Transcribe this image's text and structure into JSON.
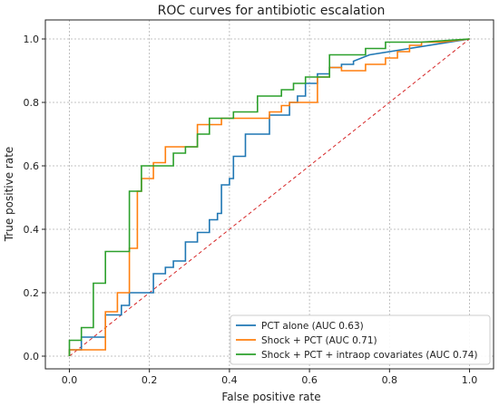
{
  "chart_data": {
    "type": "line",
    "title": "ROC curves for antibiotic escalation",
    "xlabel": "False positive rate",
    "ylabel": "True positive rate",
    "xlim": [
      -0.06,
      1.06
    ],
    "ylim": [
      -0.04,
      1.06
    ],
    "xticks": [
      "0.0",
      "0.2",
      "0.4",
      "0.6",
      "0.8",
      "1.0"
    ],
    "yticks": [
      "0.0",
      "0.2",
      "0.4",
      "0.6",
      "0.8",
      "1.0"
    ],
    "grid": true,
    "legend_position": "lower-right",
    "series": [
      {
        "name": "PCT alone (AUC 0.63)",
        "color": "#1f77b4",
        "x": [
          0,
          0,
          0.03,
          0.03,
          0.09,
          0.09,
          0.13,
          0.13,
          0.15,
          0.15,
          0.21,
          0.21,
          0.24,
          0.24,
          0.26,
          0.26,
          0.29,
          0.29,
          0.32,
          0.32,
          0.35,
          0.35,
          0.37,
          0.37,
          0.38,
          0.38,
          0.4,
          0.4,
          0.41,
          0.41,
          0.44,
          0.44,
          0.5,
          0.5,
          0.55,
          0.55,
          0.57,
          0.57,
          0.59,
          0.59,
          0.62,
          0.62,
          0.65,
          0.65,
          0.68,
          0.68,
          0.71,
          0.71,
          0.75,
          1.0
        ],
        "y": [
          0,
          0.02,
          0.02,
          0.06,
          0.06,
          0.13,
          0.13,
          0.16,
          0.16,
          0.2,
          0.2,
          0.26,
          0.26,
          0.28,
          0.28,
          0.3,
          0.3,
          0.36,
          0.36,
          0.39,
          0.39,
          0.43,
          0.43,
          0.45,
          0.45,
          0.54,
          0.54,
          0.56,
          0.56,
          0.63,
          0.63,
          0.7,
          0.7,
          0.76,
          0.76,
          0.8,
          0.8,
          0.82,
          0.82,
          0.86,
          0.86,
          0.89,
          0.89,
          0.91,
          0.91,
          0.92,
          0.92,
          0.93,
          0.95,
          1.0
        ]
      },
      {
        "name": "Shock + PCT (AUC 0.71)",
        "color": "#ff7f0e",
        "x": [
          0,
          0,
          0.09,
          0.09,
          0.12,
          0.12,
          0.15,
          0.15,
          0.17,
          0.17,
          0.18,
          0.18,
          0.21,
          0.21,
          0.24,
          0.24,
          0.32,
          0.32,
          0.38,
          0.38,
          0.5,
          0.5,
          0.53,
          0.53,
          0.55,
          0.55,
          0.62,
          0.62,
          0.65,
          0.65,
          0.68,
          0.68,
          0.74,
          0.74,
          0.79,
          0.79,
          0.82,
          0.82,
          0.85,
          0.85,
          0.88,
          0.88,
          0.93,
          1.0
        ],
        "y": [
          0,
          0.02,
          0.02,
          0.14,
          0.14,
          0.2,
          0.2,
          0.34,
          0.34,
          0.52,
          0.52,
          0.56,
          0.56,
          0.61,
          0.61,
          0.66,
          0.66,
          0.73,
          0.73,
          0.75,
          0.75,
          0.77,
          0.77,
          0.79,
          0.79,
          0.8,
          0.8,
          0.88,
          0.88,
          0.91,
          0.91,
          0.9,
          0.9,
          0.92,
          0.92,
          0.94,
          0.94,
          0.96,
          0.96,
          0.98,
          0.98,
          0.99,
          0.99,
          1.0
        ]
      },
      {
        "name": "Shock + PCT + intraop covariates (AUC 0.74)",
        "color": "#2ca02c",
        "x": [
          0,
          0,
          0.03,
          0.03,
          0.06,
          0.06,
          0.09,
          0.09,
          0.15,
          0.15,
          0.18,
          0.18,
          0.21,
          0.21,
          0.26,
          0.26,
          0.29,
          0.29,
          0.32,
          0.32,
          0.35,
          0.35,
          0.41,
          0.41,
          0.47,
          0.47,
          0.53,
          0.53,
          0.56,
          0.56,
          0.59,
          0.59,
          0.65,
          0.65,
          0.74,
          0.74,
          0.79,
          0.79,
          0.88,
          0.88,
          1.0
        ],
        "y": [
          0,
          0.05,
          0.05,
          0.09,
          0.09,
          0.23,
          0.23,
          0.33,
          0.33,
          0.52,
          0.52,
          0.6,
          0.6,
          0.6,
          0.6,
          0.64,
          0.64,
          0.66,
          0.66,
          0.7,
          0.7,
          0.75,
          0.75,
          0.77,
          0.77,
          0.82,
          0.82,
          0.84,
          0.84,
          0.86,
          0.86,
          0.88,
          0.88,
          0.95,
          0.95,
          0.97,
          0.97,
          0.99,
          0.99,
          0.99,
          1.0
        ]
      },
      {
        "name": "",
        "color": "#d62728",
        "dashed": true,
        "x": [
          0,
          1
        ],
        "y": [
          0,
          1
        ]
      }
    ]
  }
}
